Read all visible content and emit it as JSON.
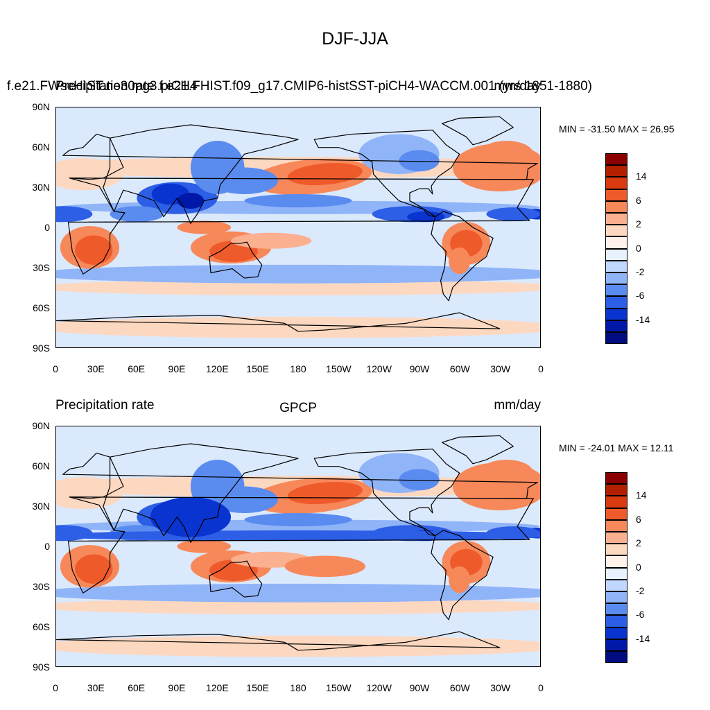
{
  "figure_title": "DJF-JJA",
  "top_panel": {
    "left_title_a": "f.e21.FWscHIST.ne30pg3.piCH4",
    "left_title_b": "Precipitation rate",
    "center_title": "f.e21.FHIST.f09_g17.CMIP6-histSST-piCH4-WACCM.001 (yrs 1851-1880)",
    "right_title": "mm/day",
    "stats": "MIN = -31.50 MAX =  26.95"
  },
  "bottom_panel": {
    "left_title": "Precipitation rate",
    "center_title": "GPCP",
    "right_title": "mm/day",
    "stats": "MIN = -24.01 MAX =  12.11"
  },
  "lat_ticks": [
    "90N",
    "60N",
    "30N",
    "0",
    "30S",
    "60S",
    "90S"
  ],
  "lon_ticks": [
    "0",
    "30E",
    "60E",
    "90E",
    "120E",
    "150E",
    "180",
    "150W",
    "120W",
    "90W",
    "60W",
    "30W",
    "0"
  ],
  "colorbar": {
    "labels": [
      "14",
      "6",
      "2",
      "0",
      "-2",
      "-6",
      "-14"
    ],
    "colors": [
      "#8b0000",
      "#b22000",
      "#d93a10",
      "#ef5a2a",
      "#f7885a",
      "#fbb090",
      "#fdd8c0",
      "#fff2ea",
      "#e8f2ff",
      "#c0d8ff",
      "#90b4f8",
      "#5a8cf0",
      "#2c5ee6",
      "#0a34d0",
      "#0018a8",
      "#000c80"
    ]
  },
  "chart_data": {
    "type": "heatmap",
    "title": "DJF-JJA",
    "variable": "Precipitation rate",
    "units": "mm/day",
    "x": [
      "0",
      "30E",
      "60E",
      "90E",
      "120E",
      "150E",
      "180",
      "150W",
      "120W",
      "90W",
      "60W",
      "30W",
      "0"
    ],
    "y": [
      "90N",
      "60N",
      "30N",
      "0",
      "30S",
      "60S",
      "90S"
    ],
    "contour_levels": [
      -14,
      -6,
      -2,
      0,
      2,
      6,
      14
    ],
    "panels": [
      {
        "name": "f.e21.FHIST.f09_g17.CMIP6-histSST-piCH4-WACCM.001 (yrs 1851-1880)",
        "min": -31.5,
        "max": 26.95
      },
      {
        "name": "GPCP",
        "min": -24.01,
        "max": 12.11
      }
    ]
  }
}
